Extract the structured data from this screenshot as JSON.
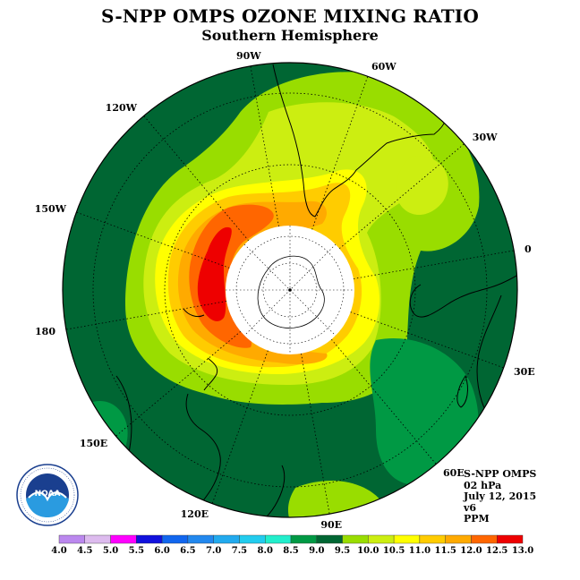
{
  "header": {
    "title": "S-NPP OMPS OZONE MIXING RATIO",
    "subtitle": "Southern Hemisphere"
  },
  "map": {
    "projection": "south-polar-stereographic",
    "longitude_labels": [
      {
        "text": "90W",
        "lon": -90
      },
      {
        "text": "60W",
        "lon": -60
      },
      {
        "text": "30W",
        "lon": -30
      },
      {
        "text": "0",
        "lon": 0
      },
      {
        "text": "30E",
        "lon": 30
      },
      {
        "text": "60E",
        "lon": 60
      },
      {
        "text": "90E",
        "lon": 90
      },
      {
        "text": "120E",
        "lon": 120
      },
      {
        "text": "150E",
        "lon": 150
      },
      {
        "text": "180",
        "lon": 180
      },
      {
        "text": "150W",
        "lon": -150
      },
      {
        "text": "120W",
        "lon": -120
      }
    ],
    "no_data_region": "polar night (white disk)",
    "colors": {
      "ocean_background": "#006633",
      "coastline": "#000000",
      "gridline": "#000000"
    }
  },
  "info": {
    "instrument": "S-NPP OMPS",
    "level": "02 hPa",
    "date": "July 12, 2015",
    "version": "v6",
    "units": "PPM"
  },
  "logo": {
    "text": "NOAA",
    "ring_text": "NATIONAL OCEANIC AND ATMOSPHERIC ADMINISTRATION · U.S. DEPARTMENT OF COMMERCE"
  },
  "colorbar": {
    "labels": [
      "4.0",
      "4.5",
      "5.0",
      "5.5",
      "6.0",
      "6.5",
      "7.0",
      "7.5",
      "8.0",
      "8.5",
      "9.0",
      "9.5",
      "10.0",
      "10.5",
      "11.0",
      "11.5",
      "12.0",
      "12.5",
      "13.0"
    ],
    "colors": [
      "#bb88ee",
      "#ddbbee",
      "#ff00ff",
      "#1111dd",
      "#1166ee",
      "#2288ee",
      "#22aaee",
      "#22ccee",
      "#22eecc",
      "#009944",
      "#006633",
      "#99dd00",
      "#ccee11",
      "#ffff00",
      "#ffcc00",
      "#ffaa00",
      "#ff6600",
      "#ee0000",
      "#886644"
    ]
  }
}
